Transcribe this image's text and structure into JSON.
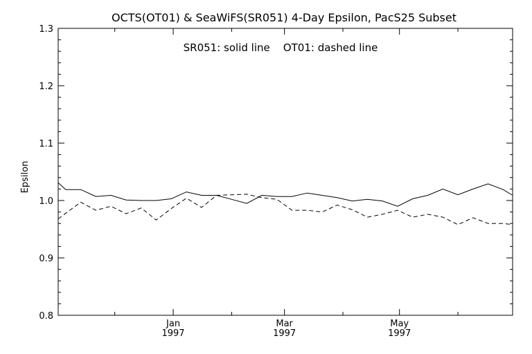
{
  "chart_data": {
    "type": "line",
    "title": "OCTS(OT01) & SeaWiFS(SR051) 4-Day Epsilon, PacS25 Subset",
    "annotation": "SR051: solid line    OT01: dashed line",
    "xlabel": "",
    "ylabel": "Epsilon",
    "ylim": [
      0.8,
      1.3
    ],
    "yticks": [
      "0.8",
      "0.9",
      "1.0",
      "1.1",
      "1.2",
      "1.3"
    ],
    "xlim": [
      "1996-11-01",
      "1997-06-30"
    ],
    "xticks": [
      {
        "date": "1997-01-01",
        "label": "Jan",
        "year": "1997"
      },
      {
        "date": "1997-03-01",
        "label": "Mar",
        "year": "1997"
      },
      {
        "date": "1997-05-01",
        "label": "May",
        "year": "1997"
      }
    ],
    "minor_tick_dates": [
      "1996-12-01",
      "1997-02-01",
      "1997-04-01",
      "1997-06-01"
    ],
    "grid": false,
    "series": [
      {
        "name": "SR051",
        "style": "solid",
        "color": "#000000",
        "x": [
          "1996-11-01",
          "1996-11-05",
          "1996-11-13",
          "1996-11-21",
          "1996-11-29",
          "1996-12-07",
          "1996-12-15",
          "1996-12-23",
          "1996-12-31",
          "1997-01-08",
          "1997-01-16",
          "1997-01-24",
          "1997-02-01",
          "1997-02-09",
          "1997-02-17",
          "1997-02-25",
          "1997-03-05",
          "1997-03-13",
          "1997-03-21",
          "1997-03-29",
          "1997-04-06",
          "1997-04-14",
          "1997-04-22",
          "1997-04-30",
          "1997-05-08",
          "1997-05-16",
          "1997-05-24",
          "1997-06-01",
          "1997-06-09",
          "1997-06-17",
          "1997-06-25",
          "1997-06-30"
        ],
        "y": [
          1.031,
          1.019,
          1.019,
          1.007,
          1.009,
          1.001,
          1.0,
          1.0,
          1.003,
          1.015,
          1.009,
          1.009,
          1.002,
          0.995,
          1.009,
          1.007,
          1.007,
          1.013,
          1.009,
          1.005,
          0.999,
          1.002,
          0.999,
          0.99,
          1.003,
          1.009,
          1.02,
          1.01,
          1.02,
          1.029,
          1.019,
          1.009
        ]
      },
      {
        "name": "OT01",
        "style": "dashed",
        "color": "#000000",
        "x": [
          "1996-11-01",
          "1996-11-05",
          "1996-11-13",
          "1996-11-21",
          "1996-11-29",
          "1996-12-07",
          "1996-12-15",
          "1996-12-23",
          "1996-12-31",
          "1997-01-08",
          "1997-01-16",
          "1997-01-24",
          "1997-02-01",
          "1997-02-09",
          "1997-02-17",
          "1997-02-25",
          "1997-03-05",
          "1997-03-13",
          "1997-03-21",
          "1997-03-29",
          "1997-04-06",
          "1997-04-14",
          "1997-04-22",
          "1997-04-30",
          "1997-05-08",
          "1997-05-16",
          "1997-05-24",
          "1997-06-01",
          "1997-06-09",
          "1997-06-17",
          "1997-06-25",
          "1997-06-30"
        ],
        "y": [
          0.968,
          0.978,
          0.997,
          0.983,
          0.99,
          0.977,
          0.987,
          0.966,
          0.986,
          1.004,
          0.988,
          1.009,
          1.01,
          1.011,
          1.005,
          1.002,
          0.983,
          0.983,
          0.98,
          0.992,
          0.984,
          0.971,
          0.976,
          0.983,
          0.971,
          0.976,
          0.971,
          0.958,
          0.97,
          0.96,
          0.96,
          0.958
        ]
      }
    ]
  }
}
